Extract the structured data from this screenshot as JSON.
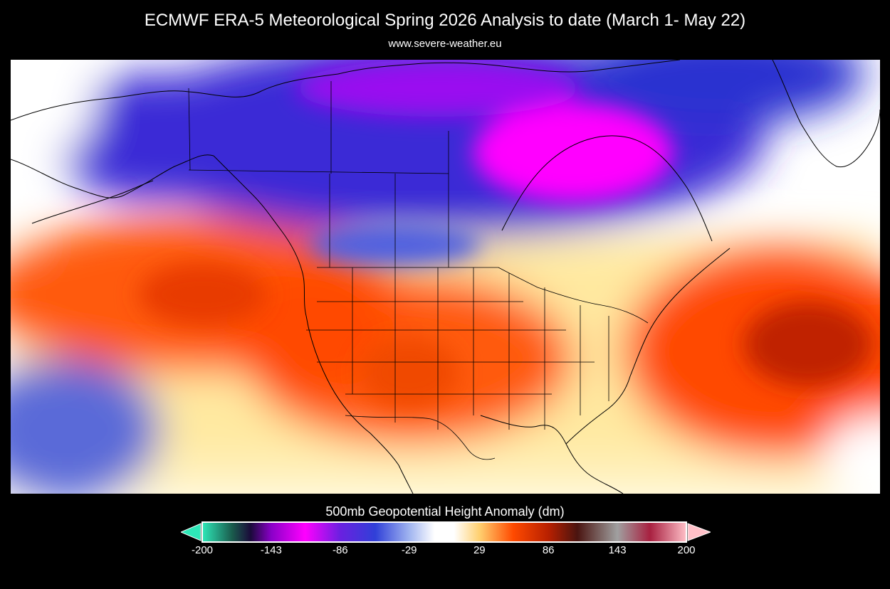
{
  "title": "ECMWF ERA-5 Meteorological Spring 2026 Analysis to date (March 1- May 22)",
  "subtitle": "www.severe-weather.eu",
  "map": {
    "variable": "500mb Geopotential Height Anomaly",
    "region": "North America",
    "colors": {
      "border": "#000000",
      "neg_strong": "#ff00ff",
      "neg_mid": "#3b2ad6",
      "neutral": "#ffffff",
      "pos_mid": "#ff4a00",
      "pos_strong": "#b01800"
    }
  },
  "colorbar": {
    "title": "500mb Geopotential Height Anomaly (dm)",
    "ticks": [
      "-200",
      "-143",
      "-86",
      "-29",
      "29",
      "86",
      "143",
      "200"
    ],
    "min": -200,
    "max": 200,
    "stops": [
      {
        "value": -200,
        "color": "#2ee8b8"
      },
      {
        "value": -175,
        "color": "#1a5a4c"
      },
      {
        "value": -160,
        "color": "#1a0a3a"
      },
      {
        "value": -143,
        "color": "#8a00c8"
      },
      {
        "value": -115,
        "color": "#ff00ff"
      },
      {
        "value": -86,
        "color": "#6a20e0"
      },
      {
        "value": -57,
        "color": "#3040d8"
      },
      {
        "value": -29,
        "color": "#a0b4f0"
      },
      {
        "value": -8,
        "color": "#ffffff"
      },
      {
        "value": 8,
        "color": "#ffffff"
      },
      {
        "value": 29,
        "color": "#ffd070"
      },
      {
        "value": 57,
        "color": "#ff4a00"
      },
      {
        "value": 86,
        "color": "#b82000"
      },
      {
        "value": 110,
        "color": "#4a1410"
      },
      {
        "value": 143,
        "color": "#a0a0a0"
      },
      {
        "value": 170,
        "color": "#a82040"
      },
      {
        "value": 200,
        "color": "#ffc0c8"
      }
    ]
  }
}
